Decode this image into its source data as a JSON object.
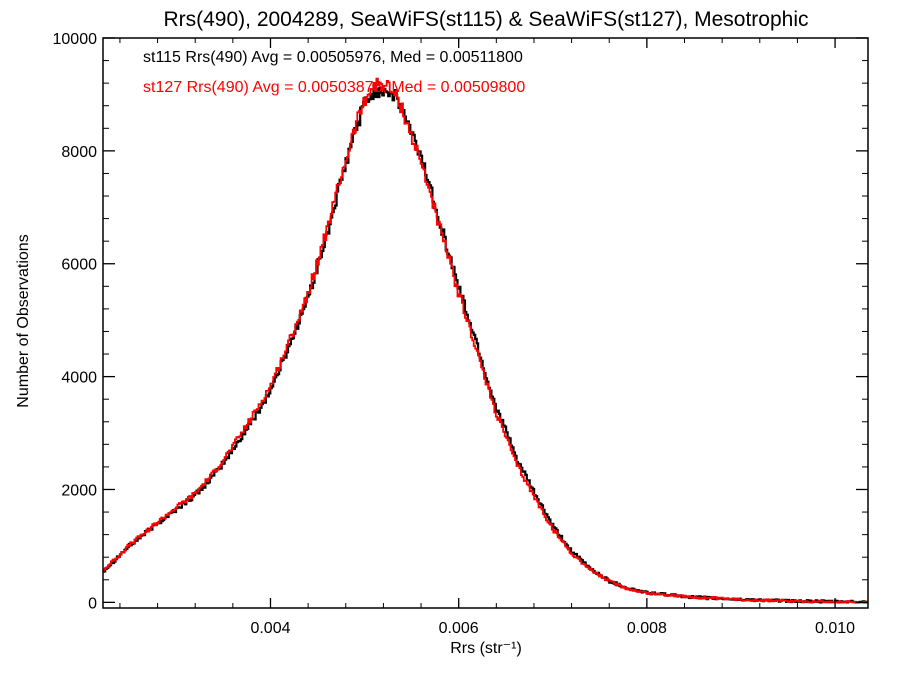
{
  "chart_data": {
    "type": "line",
    "title": "Rrs(490), 2004289, SeaWiFS(st115) & SeaWiFS(st127), Mesotrophic",
    "xlabel": "Rrs (str⁻¹)",
    "ylabel": "Number of Observations",
    "xlim": [
      0.00222,
      0.01035
    ],
    "ylim": [
      -100,
      10000
    ],
    "xticks": [
      0.004,
      0.006,
      0.008,
      0.01
    ],
    "xtick_labels": [
      "0.004",
      "0.006",
      "0.008",
      "0.010"
    ],
    "yticks": [
      0,
      2000,
      4000,
      6000,
      8000,
      10000
    ],
    "ytick_labels": [
      "0",
      "2000",
      "4000",
      "6000",
      "8000",
      "10000"
    ],
    "grid": false,
    "style": "step",
    "annotations": [
      "st115 Rrs(490) Avg = 0.00505976, Med = 0.00511800",
      "st127 Rrs(490) Avg = 0.00503876, Med = 0.00509800"
    ],
    "series": [
      {
        "color": "#000000",
        "x": [
          0.00222,
          0.0025,
          0.0028,
          0.003,
          0.0032,
          0.0034,
          0.0036,
          0.0038,
          0.004,
          0.0042,
          0.0044,
          0.0045,
          0.0046,
          0.0047,
          0.0048,
          0.0049,
          0.005,
          0.0051,
          0.0052,
          0.0053,
          0.0054,
          0.0055,
          0.0056,
          0.0057,
          0.0058,
          0.0059,
          0.006,
          0.0061,
          0.0062,
          0.0063,
          0.0064,
          0.0065,
          0.0066,
          0.0068,
          0.007,
          0.0072,
          0.0074,
          0.0076,
          0.0078,
          0.008,
          0.0085,
          0.009,
          0.0095,
          0.01,
          0.01035
        ],
        "y": [
          550,
          1000,
          1400,
          1650,
          1900,
          2250,
          2700,
          3200,
          3750,
          4550,
          5400,
          5950,
          6500,
          7150,
          7750,
          8350,
          8850,
          9050,
          9100,
          9000,
          8750,
          8300,
          7900,
          7350,
          6750,
          6150,
          5600,
          5050,
          4550,
          3950,
          3450,
          3050,
          2600,
          1950,
          1350,
          900,
          600,
          380,
          250,
          170,
          90,
          50,
          25,
          10,
          5
        ]
      },
      {
        "color": "#ff0000",
        "x": [
          0.00222,
          0.0025,
          0.0028,
          0.003,
          0.0032,
          0.0034,
          0.0036,
          0.0038,
          0.004,
          0.0042,
          0.0044,
          0.0045,
          0.0046,
          0.0047,
          0.0048,
          0.0049,
          0.005,
          0.0051,
          0.0052,
          0.0053,
          0.0054,
          0.0055,
          0.0056,
          0.0057,
          0.0058,
          0.0059,
          0.006,
          0.0061,
          0.0062,
          0.0063,
          0.0064,
          0.0065,
          0.0066,
          0.0068,
          0.007,
          0.0072,
          0.0074,
          0.0076,
          0.0078,
          0.008,
          0.0085,
          0.009,
          0.0095,
          0.01,
          0.01035
        ],
        "y": [
          560,
          1010,
          1420,
          1680,
          1930,
          2300,
          2760,
          3270,
          3830,
          4620,
          5480,
          6040,
          6600,
          7230,
          7830,
          8420,
          8920,
          9150,
          9200,
          9050,
          8750,
          8250,
          7800,
          7250,
          6650,
          6050,
          5480,
          4950,
          4430,
          3850,
          3350,
          2950,
          2500,
          1880,
          1300,
          870,
          580,
          370,
          240,
          165,
          88,
          48,
          24,
          10,
          5
        ]
      }
    ]
  }
}
